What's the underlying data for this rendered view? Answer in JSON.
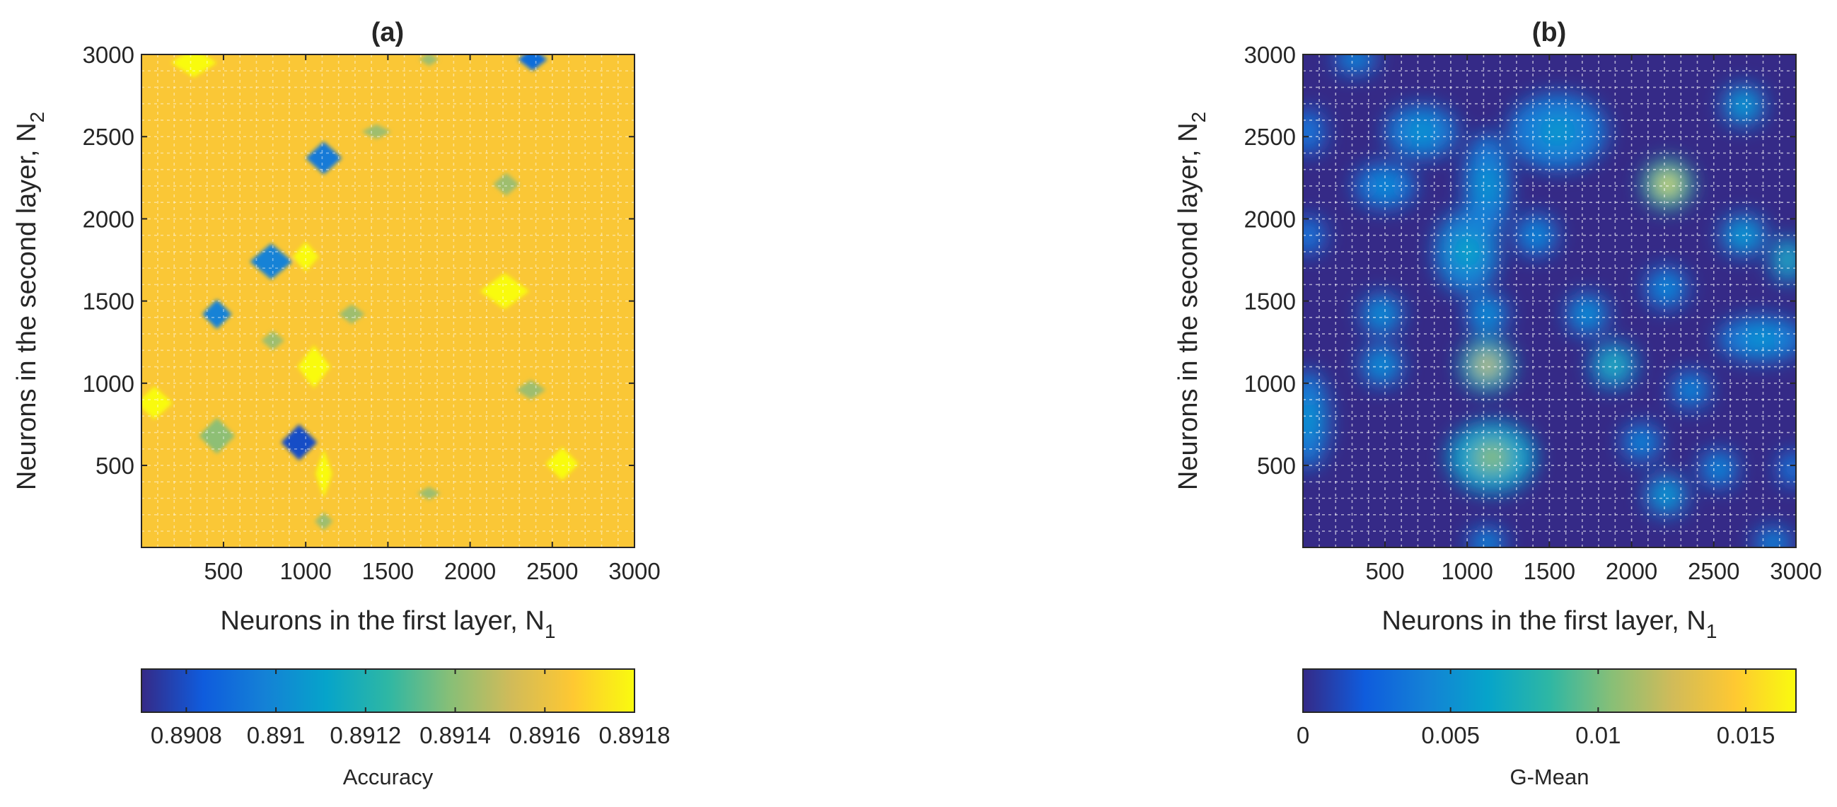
{
  "chart_data": [
    {
      "type": "heatmap",
      "subtype": "filled-contour",
      "title": "(a)",
      "xlabel": "Neurons in the first layer, N",
      "xlabel_sub": "1",
      "ylabel": "Neurons in the second layer, N",
      "ylabel_sub": "2",
      "xlim": [
        1,
        3000
      ],
      "ylim": [
        1,
        3000
      ],
      "xticks": [
        500,
        1000,
        1500,
        2000,
        2500,
        3000
      ],
      "yticks": [
        500,
        1000,
        1500,
        2000,
        2500,
        3000
      ],
      "grid": true,
      "colorbar": {
        "label": "Accuracy",
        "location": "southoutside",
        "range": [
          0.8907,
          0.8918
        ],
        "ticks": [
          0.8908,
          0.891,
          0.8912,
          0.8914,
          0.8916,
          0.8918
        ],
        "tick_labels": [
          "0.8908",
          "0.891",
          "0.8912",
          "0.8914",
          "0.8916",
          "0.8918"
        ]
      },
      "background_value": 0.89165,
      "features": [
        {
          "x": 320,
          "y": 2950,
          "value": 0.8918,
          "rx": 140,
          "ry": 90
        },
        {
          "x": 1750,
          "y": 2970,
          "value": 0.89143,
          "rx": 60,
          "ry": 40
        },
        {
          "x": 2380,
          "y": 2970,
          "value": 0.8909,
          "rx": 90,
          "ry": 70
        },
        {
          "x": 1430,
          "y": 2530,
          "value": 0.89143,
          "rx": 90,
          "ry": 45
        },
        {
          "x": 1110,
          "y": 2370,
          "value": 0.89095,
          "rx": 110,
          "ry": 100
        },
        {
          "x": 2220,
          "y": 2210,
          "value": 0.89143,
          "rx": 80,
          "ry": 70
        },
        {
          "x": 790,
          "y": 1740,
          "value": 0.89098,
          "rx": 130,
          "ry": 110
        },
        {
          "x": 1000,
          "y": 1770,
          "value": 0.8918,
          "rx": 80,
          "ry": 90
        },
        {
          "x": 2210,
          "y": 1560,
          "value": 0.8918,
          "rx": 150,
          "ry": 110
        },
        {
          "x": 460,
          "y": 1420,
          "value": 0.89098,
          "rx": 90,
          "ry": 90
        },
        {
          "x": 1280,
          "y": 1420,
          "value": 0.89143,
          "rx": 80,
          "ry": 60
        },
        {
          "x": 800,
          "y": 1260,
          "value": 0.89143,
          "rx": 70,
          "ry": 60
        },
        {
          "x": 1050,
          "y": 1100,
          "value": 0.8918,
          "rx": 100,
          "ry": 130
        },
        {
          "x": 80,
          "y": 880,
          "value": 0.8918,
          "rx": 110,
          "ry": 100
        },
        {
          "x": 2370,
          "y": 960,
          "value": 0.89143,
          "rx": 90,
          "ry": 60
        },
        {
          "x": 460,
          "y": 680,
          "value": 0.8914,
          "rx": 110,
          "ry": 110
        },
        {
          "x": 960,
          "y": 640,
          "value": 0.8908,
          "rx": 110,
          "ry": 110
        },
        {
          "x": 1110,
          "y": 450,
          "value": 0.8918,
          "rx": 50,
          "ry": 150
        },
        {
          "x": 2560,
          "y": 510,
          "value": 0.8918,
          "rx": 100,
          "ry": 100
        },
        {
          "x": 1750,
          "y": 330,
          "value": 0.89143,
          "rx": 70,
          "ry": 40
        },
        {
          "x": 1110,
          "y": 160,
          "value": 0.89143,
          "rx": 55,
          "ry": 55
        }
      ]
    },
    {
      "type": "heatmap",
      "subtype": "filled-contour",
      "title": "(b)",
      "xlabel": "Neurons in the first layer, N",
      "xlabel_sub": "1",
      "ylabel": "Neurons in the second layer, N",
      "ylabel_sub": "2",
      "xlim": [
        1,
        3000
      ],
      "ylim": [
        1,
        3000
      ],
      "xticks": [
        500,
        1000,
        1500,
        2000,
        2500,
        3000
      ],
      "yticks": [
        500,
        1000,
        1500,
        2000,
        2500,
        3000
      ],
      "grid": true,
      "colorbar": {
        "label": "G-Mean",
        "location": "southoutside",
        "range": [
          0,
          0.0167
        ],
        "ticks": [
          0,
          0.005,
          0.01,
          0.015
        ],
        "tick_labels": [
          "0",
          "0.005",
          "0.01",
          "0.015"
        ]
      },
      "background_value": 0,
      "features": [
        {
          "x": 320,
          "y": 2970,
          "value": 0.005,
          "rx": 110,
          "ry": 80
        },
        {
          "x": 1550,
          "y": 2530,
          "value": 0.0055,
          "rx": 260,
          "ry": 200
        },
        {
          "x": 720,
          "y": 2530,
          "value": 0.0055,
          "rx": 190,
          "ry": 140
        },
        {
          "x": 2680,
          "y": 2690,
          "value": 0.0065,
          "rx": 110,
          "ry": 110
        },
        {
          "x": 30,
          "y": 2530,
          "value": 0.004,
          "rx": 90,
          "ry": 120
        },
        {
          "x": 1120,
          "y": 2200,
          "value": 0.0055,
          "rx": 120,
          "ry": 280
        },
        {
          "x": 500,
          "y": 2200,
          "value": 0.005,
          "rx": 160,
          "ry": 120
        },
        {
          "x": 2220,
          "y": 2210,
          "value": 0.0155,
          "rx": 130,
          "ry": 130
        },
        {
          "x": 1000,
          "y": 1800,
          "value": 0.0065,
          "rx": 170,
          "ry": 220
        },
        {
          "x": 1420,
          "y": 1900,
          "value": 0.005,
          "rx": 110,
          "ry": 110
        },
        {
          "x": 2680,
          "y": 1900,
          "value": 0.0065,
          "rx": 120,
          "ry": 110
        },
        {
          "x": 30,
          "y": 1900,
          "value": 0.004,
          "rx": 90,
          "ry": 100
        },
        {
          "x": 2950,
          "y": 1750,
          "value": 0.0085,
          "rx": 90,
          "ry": 120
        },
        {
          "x": 2210,
          "y": 1580,
          "value": 0.005,
          "rx": 110,
          "ry": 110
        },
        {
          "x": 480,
          "y": 1420,
          "value": 0.0055,
          "rx": 110,
          "ry": 110
        },
        {
          "x": 1120,
          "y": 1420,
          "value": 0.0055,
          "rx": 110,
          "ry": 110
        },
        {
          "x": 1730,
          "y": 1420,
          "value": 0.0055,
          "rx": 110,
          "ry": 110
        },
        {
          "x": 2790,
          "y": 1270,
          "value": 0.0055,
          "rx": 230,
          "ry": 120
        },
        {
          "x": 480,
          "y": 1110,
          "value": 0.0055,
          "rx": 110,
          "ry": 110
        },
        {
          "x": 1120,
          "y": 1110,
          "value": 0.013,
          "rx": 140,
          "ry": 140
        },
        {
          "x": 1890,
          "y": 1110,
          "value": 0.0085,
          "rx": 120,
          "ry": 120
        },
        {
          "x": 2360,
          "y": 960,
          "value": 0.005,
          "rx": 100,
          "ry": 100
        },
        {
          "x": 30,
          "y": 780,
          "value": 0.0055,
          "rx": 110,
          "ry": 260
        },
        {
          "x": 1150,
          "y": 550,
          "value": 0.0105,
          "rx": 230,
          "ry": 190
        },
        {
          "x": 2060,
          "y": 640,
          "value": 0.005,
          "rx": 100,
          "ry": 100
        },
        {
          "x": 2530,
          "y": 480,
          "value": 0.005,
          "rx": 100,
          "ry": 100
        },
        {
          "x": 2980,
          "y": 480,
          "value": 0.004,
          "rx": 80,
          "ry": 90
        },
        {
          "x": 2210,
          "y": 320,
          "value": 0.0065,
          "rx": 110,
          "ry": 110
        },
        {
          "x": 1120,
          "y": 30,
          "value": 0.005,
          "rx": 100,
          "ry": 80
        },
        {
          "x": 2860,
          "y": 30,
          "value": 0.005,
          "rx": 100,
          "ry": 80
        }
      ]
    }
  ]
}
